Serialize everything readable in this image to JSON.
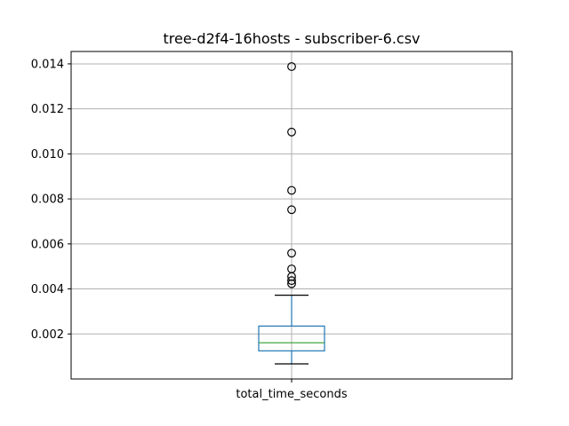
{
  "chart_data": {
    "type": "box",
    "title": "tree-d2f4-16hosts - subscriber-6.csv",
    "xlabel": "",
    "ylabel": "",
    "categories": [
      "total_time_seconds"
    ],
    "ylim": [
      0.0,
      0.01455
    ],
    "yticks": [
      0.002,
      0.004,
      0.006,
      0.008,
      0.01,
      0.012,
      0.014
    ],
    "ytick_labels": [
      "0.002",
      "0.004",
      "0.006",
      "0.008",
      "0.010",
      "0.012",
      "0.014"
    ],
    "grid": true,
    "series": [
      {
        "whisker_low": 0.00067,
        "q1": 0.00125,
        "median": 0.00161,
        "q3": 0.00235,
        "whisker_high": 0.00372,
        "outliers": [
          0.00423,
          0.00437,
          0.00455,
          0.00489,
          0.00559,
          0.00752,
          0.00838,
          0.01097,
          0.01388
        ]
      }
    ],
    "colors": {
      "box": "#1f77b4",
      "median": "#2ca02c",
      "whisker_cap": "#000000",
      "grid": "#b0b0b0"
    }
  }
}
